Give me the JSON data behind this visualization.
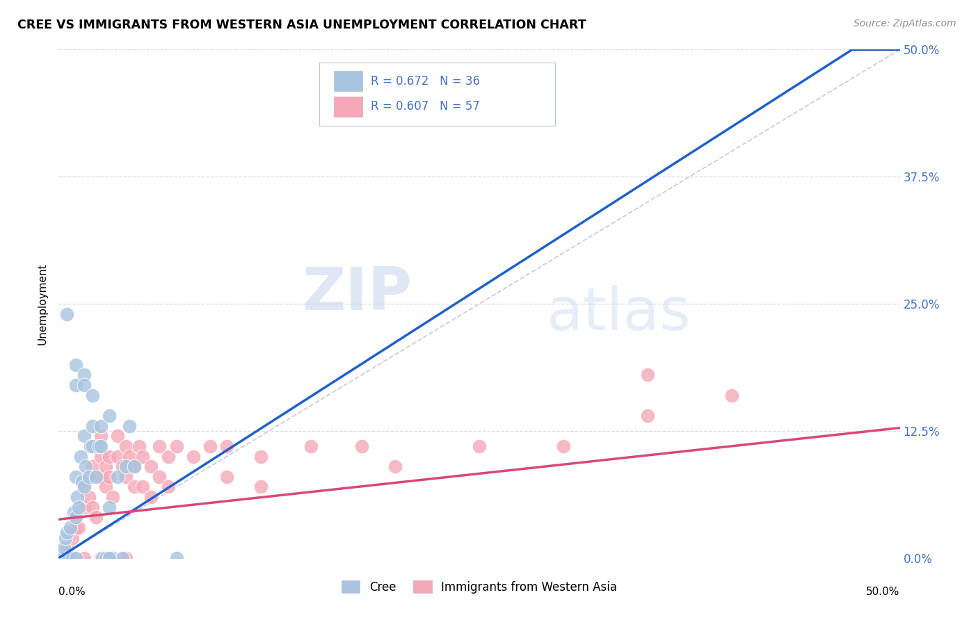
{
  "title": "CREE VS IMMIGRANTS FROM WESTERN ASIA UNEMPLOYMENT CORRELATION CHART",
  "source": "Source: ZipAtlas.com",
  "ylabel": "Unemployment",
  "legend_bottom1": "Cree",
  "legend_bottom2": "Immigrants from Western Asia",
  "y_tick_labels": [
    "0.0%",
    "12.5%",
    "25.0%",
    "37.5%",
    "50.0%"
  ],
  "y_tick_values": [
    0.0,
    0.125,
    0.25,
    0.375,
    0.5
  ],
  "xlim": [
    0.0,
    0.5
  ],
  "ylim": [
    0.0,
    0.5
  ],
  "cree_color": "#a8c4e0",
  "immigrants_color": "#f4a8b8",
  "cree_line_color": "#2060c8",
  "immigrants_line_color": "#d84878",
  "diagonal_color": "#c0c8d8",
  "watermark_zip": "ZIP",
  "watermark_atlas": "atlas",
  "watermark_color": "#c8d8ec",
  "cree_line_slope": 1.06,
  "cree_line_intercept": 0.0,
  "immigrants_line_slope": 0.18,
  "immigrants_line_intercept": 0.038,
  "cree_points_x": [
    0.001,
    0.002,
    0.003,
    0.004,
    0.005,
    0.006,
    0.007,
    0.008,
    0.009,
    0.01,
    0.01,
    0.011,
    0.012,
    0.013,
    0.014,
    0.015,
    0.015,
    0.016,
    0.018,
    0.019,
    0.02,
    0.02,
    0.022,
    0.024,
    0.025,
    0.025,
    0.026,
    0.028,
    0.03,
    0.03,
    0.032,
    0.035,
    0.038,
    0.04,
    0.042,
    0.045
  ],
  "cree_points_y": [
    0.0,
    0.0,
    0.01,
    0.02,
    0.025,
    0.0,
    0.03,
    0.0,
    0.045,
    0.04,
    0.08,
    0.06,
    0.05,
    0.1,
    0.075,
    0.12,
    0.07,
    0.09,
    0.08,
    0.11,
    0.11,
    0.13,
    0.08,
    0.11,
    0.11,
    0.13,
    0.0,
    0.0,
    0.14,
    0.05,
    0.0,
    0.08,
    0.0,
    0.09,
    0.13,
    0.09
  ],
  "cree_outlier_x": [
    0.005,
    0.01,
    0.01,
    0.015,
    0.015,
    0.02,
    0.07,
    0.01,
    0.03
  ],
  "cree_outlier_y": [
    0.24,
    0.19,
    0.17,
    0.18,
    0.17,
    0.16,
    0.0,
    0.0,
    0.0
  ],
  "immigrants_points_x": [
    0.001,
    0.005,
    0.005,
    0.008,
    0.01,
    0.01,
    0.012,
    0.015,
    0.015,
    0.018,
    0.018,
    0.02,
    0.02,
    0.022,
    0.025,
    0.025,
    0.025,
    0.028,
    0.028,
    0.03,
    0.03,
    0.032,
    0.035,
    0.035,
    0.038,
    0.04,
    0.04,
    0.042,
    0.045,
    0.045,
    0.048,
    0.05,
    0.05,
    0.055,
    0.055,
    0.06,
    0.06,
    0.065,
    0.065,
    0.07,
    0.08,
    0.09,
    0.1,
    0.1,
    0.12,
    0.12,
    0.15,
    0.18,
    0.2,
    0.25,
    0.3,
    0.35,
    0.4,
    0.015,
    0.025,
    0.04,
    0.35
  ],
  "immigrants_points_y": [
    0.0,
    0.01,
    0.0,
    0.02,
    0.03,
    0.04,
    0.03,
    0.05,
    0.07,
    0.08,
    0.06,
    0.09,
    0.05,
    0.04,
    0.08,
    0.1,
    0.12,
    0.09,
    0.07,
    0.1,
    0.08,
    0.06,
    0.1,
    0.12,
    0.09,
    0.11,
    0.08,
    0.1,
    0.09,
    0.07,
    0.11,
    0.1,
    0.07,
    0.09,
    0.06,
    0.11,
    0.08,
    0.1,
    0.07,
    0.11,
    0.1,
    0.11,
    0.11,
    0.08,
    0.1,
    0.07,
    0.11,
    0.11,
    0.09,
    0.11,
    0.11,
    0.14,
    0.16,
    0.0,
    0.0,
    0.0,
    0.18
  ]
}
